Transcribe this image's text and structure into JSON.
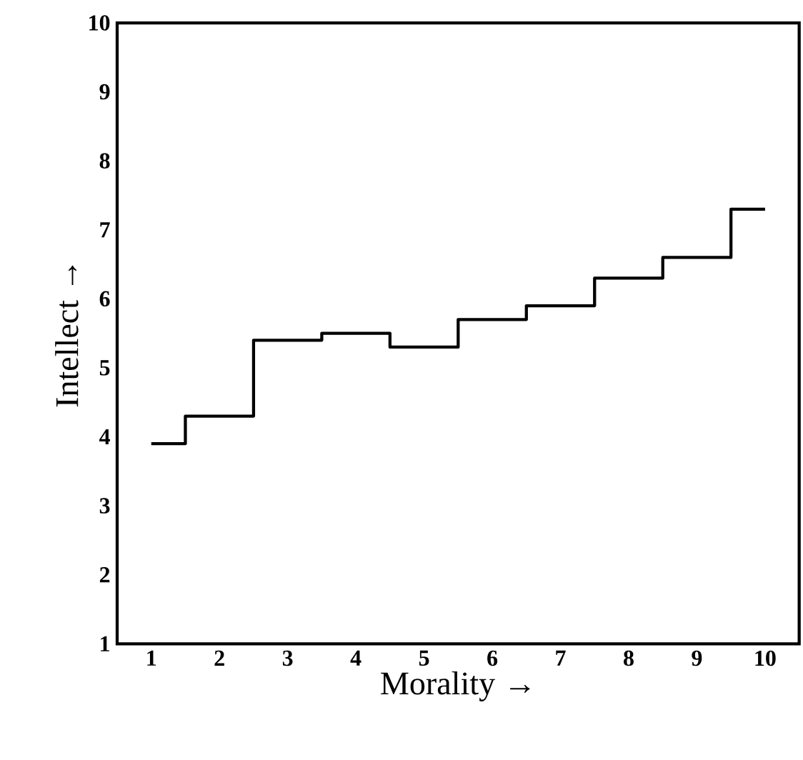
{
  "chart_data": {
    "type": "step",
    "xlabel": "Morality →",
    "ylabel": "Intellect →",
    "x": [
      1,
      2,
      3,
      4,
      5,
      6,
      7,
      8,
      9,
      10
    ],
    "series": [
      {
        "color": "#000000",
        "values": [
          3.9,
          4.3,
          5.4,
          5.5,
          5.3,
          5.7,
          5.9,
          6.3,
          6.6,
          7.3
        ]
      }
    ],
    "xlim": [
      0.5,
      10.5
    ],
    "ylim": [
      1,
      10
    ],
    "xticks": [
      1,
      2,
      3,
      4,
      5,
      6,
      7,
      8,
      9,
      10
    ],
    "yticks": [
      1,
      2,
      3,
      4,
      5,
      6,
      7,
      8,
      9,
      10
    ],
    "grid": false,
    "marker": "none",
    "line_style": "solid"
  }
}
